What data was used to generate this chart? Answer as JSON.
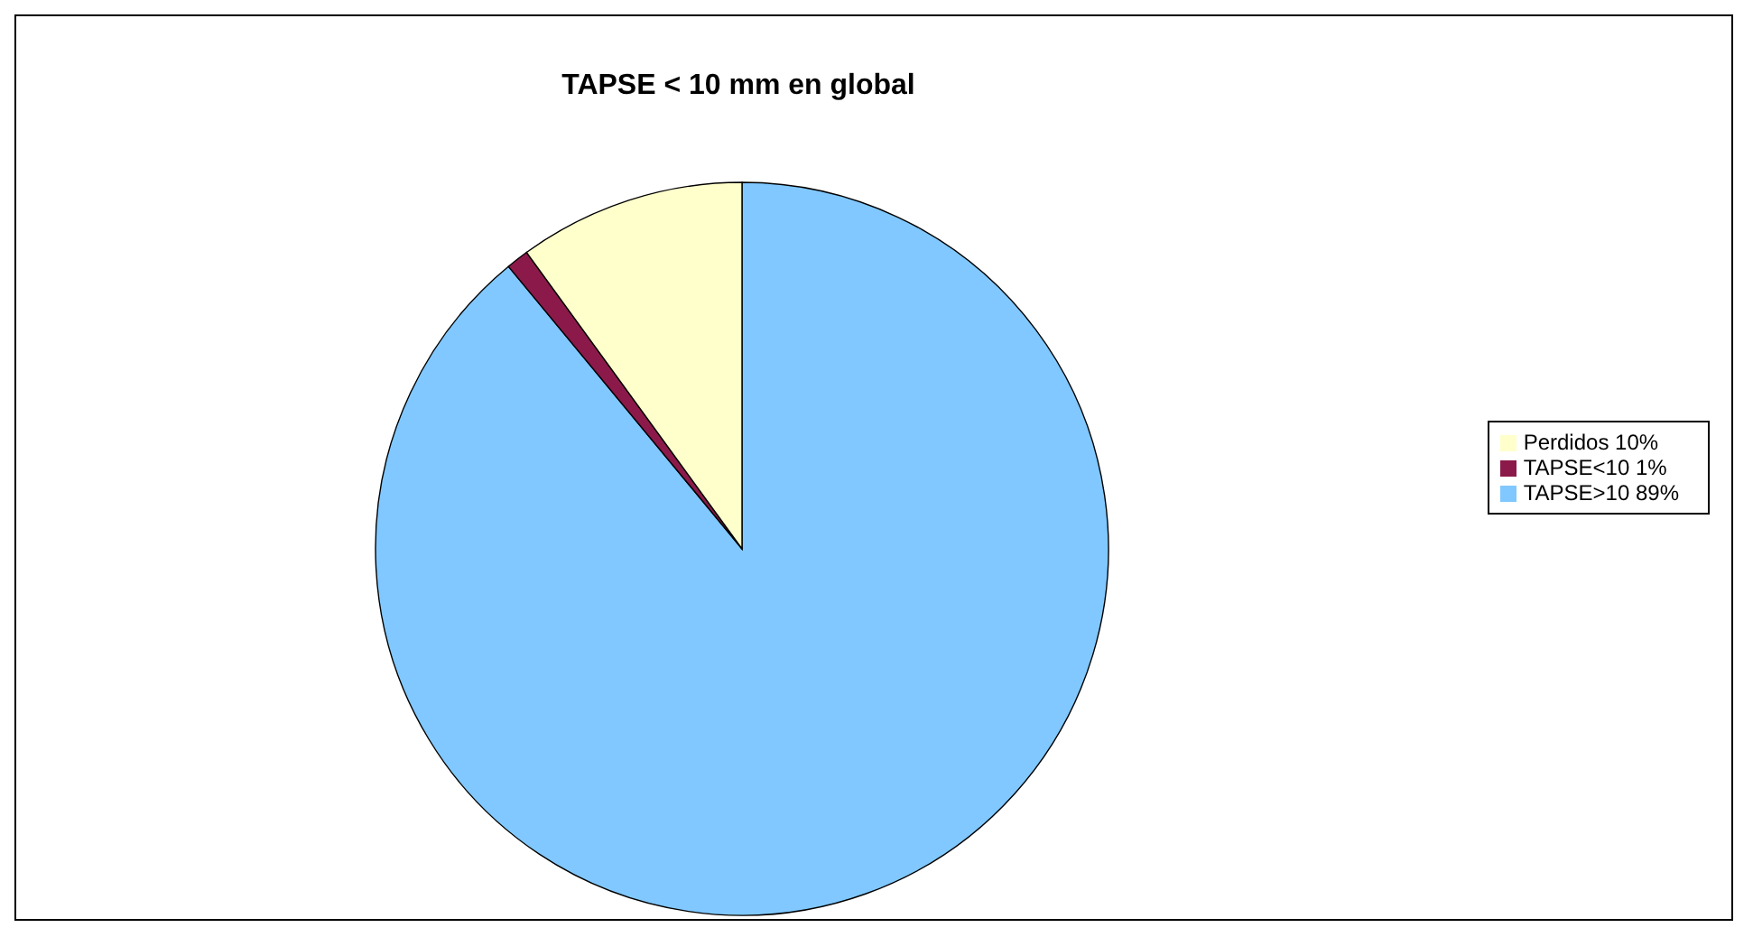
{
  "chart_data": {
    "type": "pie",
    "title": "TAPSE < 10 mm en global",
    "categories": [
      "TAPSE>10 89%",
      "TAPSE<10 1%",
      "Perdidos 10%"
    ],
    "values": [
      89,
      1,
      10
    ],
    "colors": [
      "#80c8ff",
      "#8b1a4a",
      "#ffffcc"
    ],
    "legend": "right"
  }
}
